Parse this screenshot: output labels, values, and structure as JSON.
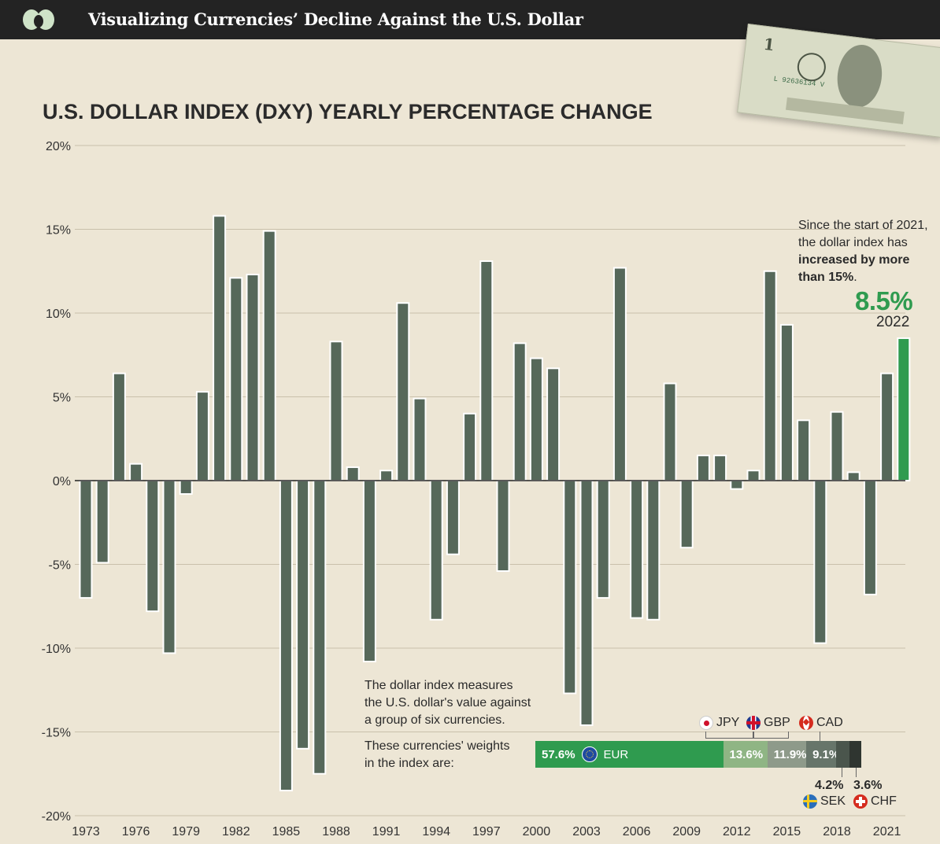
{
  "header": {
    "title": "Visualizing Currencies’ Decline Against the U.S. Dollar"
  },
  "chart_title": "U.S. DOLLAR INDEX (DXY) YEARLY PERCENTAGE CHANGE",
  "chart_data": {
    "type": "bar",
    "title": "U.S. DOLLAR INDEX (DXY) YEARLY PERCENTAGE CHANGE",
    "xlabel": "",
    "ylabel": "",
    "ylim": [
      -20,
      20
    ],
    "yticks": [
      20,
      15,
      10,
      5,
      0,
      -5,
      -10,
      -15,
      -20
    ],
    "ytick_labels": [
      "20%",
      "15%",
      "10%",
      "5%",
      "0%",
      "-5%",
      "-10%",
      "-15%",
      "-20%"
    ],
    "xtick_labels": [
      "1973",
      "1976",
      "1979",
      "1982",
      "1985",
      "1988",
      "1991",
      "1994",
      "1997",
      "2000",
      "2003",
      "2006",
      "2009",
      "2012",
      "2015",
      "2018",
      "2021"
    ],
    "categories": [
      1973,
      1974,
      1975,
      1976,
      1977,
      1978,
      1979,
      1980,
      1981,
      1982,
      1983,
      1984,
      1985,
      1986,
      1987,
      1988,
      1989,
      1990,
      1991,
      1992,
      1993,
      1994,
      1995,
      1996,
      1997,
      1998,
      1999,
      2000,
      2001,
      2002,
      2003,
      2004,
      2005,
      2006,
      2007,
      2008,
      2009,
      2010,
      2011,
      2012,
      2013,
      2014,
      2015,
      2016,
      2017,
      2018,
      2019,
      2020,
      2021,
      2022
    ],
    "values": [
      -7.0,
      -4.9,
      6.4,
      1.0,
      -7.8,
      -10.3,
      -0.8,
      5.3,
      15.8,
      12.1,
      12.3,
      14.9,
      -18.5,
      -16.0,
      -17.5,
      8.3,
      0.8,
      -10.8,
      0.6,
      10.6,
      4.9,
      -8.3,
      -4.4,
      4.0,
      13.1,
      -5.4,
      8.2,
      7.3,
      6.7,
      -12.7,
      -14.6,
      -7.0,
      12.7,
      -8.2,
      -8.3,
      5.8,
      -4.0,
      1.5,
      1.5,
      -0.5,
      0.6,
      12.5,
      9.3,
      3.6,
      -9.7,
      4.1,
      0.5,
      -6.8,
      6.4,
      8.5
    ],
    "highlight": {
      "year": 2022,
      "value": 8.5,
      "label": "8.5%",
      "year_label": "2022"
    }
  },
  "annotations": {
    "since_2021": {
      "line1": "Since the start of 2021,",
      "line2": "the dollar index has",
      "line3_bold": "increased by more",
      "line4_bold": "than 15%",
      "line4_tail": "."
    },
    "index_note": {
      "line1": "The dollar index measures",
      "line2": "the U.S. dollar's value against",
      "line3": "a group of six currencies."
    },
    "weights_note": {
      "line1": "These currencies' weights",
      "line2": "in the index are:"
    }
  },
  "weights": [
    {
      "currency": "EUR",
      "pct": 57.6,
      "label": "57.6%",
      "color": "#2f9b4f"
    },
    {
      "currency": "JPY",
      "pct": 13.6,
      "label": "13.6%",
      "color": "#8fb584"
    },
    {
      "currency": "GBP",
      "pct": 11.9,
      "label": "11.9%",
      "color": "#8e9a8a"
    },
    {
      "currency": "CAD",
      "pct": 9.1,
      "label": "9.1%",
      "color": "#67756a"
    },
    {
      "currency": "SEK",
      "pct": 4.2,
      "label": "4.2%",
      "color": "#4a554c"
    },
    {
      "currency": "CHF",
      "pct": 3.6,
      "label": "3.6%",
      "color": "#2f3530"
    }
  ],
  "colors": {
    "bar": "#56685a",
    "highlight": "#2f9b4f",
    "background": "#ede6d5"
  }
}
